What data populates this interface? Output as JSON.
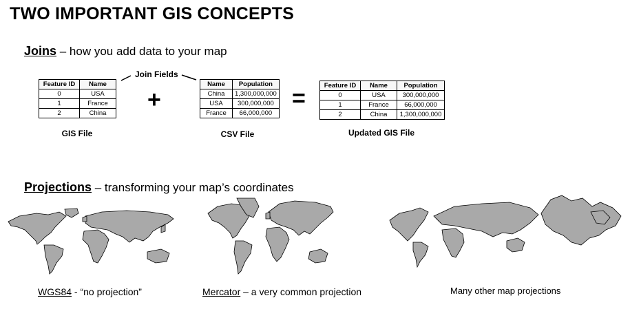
{
  "title": "TWO IMPORTANT GIS CONCEPTS",
  "joins": {
    "heading": "Joins",
    "description": " – how you add data to your map",
    "join_fields_label": "Join Fields",
    "plus": "+",
    "equals": "=",
    "gis_table": {
      "caption": "GIS File",
      "headers": [
        "Feature ID",
        "Name"
      ],
      "rows": [
        [
          "0",
          "USA"
        ],
        [
          "1",
          "France"
        ],
        [
          "2",
          "China"
        ]
      ]
    },
    "csv_table": {
      "caption": "CSV File",
      "headers": [
        "Name",
        "Population"
      ],
      "rows": [
        [
          "China",
          "1,300,000,000"
        ],
        [
          "USA",
          "300,000,000"
        ],
        [
          "France",
          "66,000,000"
        ]
      ]
    },
    "updated_table": {
      "caption": "Updated GIS File",
      "headers": [
        "Feature ID",
        "Name",
        "Population"
      ],
      "rows": [
        [
          "0",
          "USA",
          "300,000,000"
        ],
        [
          "1",
          "France",
          "66,000,000"
        ],
        [
          "2",
          "China",
          "1,300,000,000"
        ]
      ]
    }
  },
  "projections": {
    "heading": "Projections",
    "description": " – transforming your map’s coordinates",
    "maps": [
      {
        "name": "WGS84",
        "rest": " - “no projection”"
      },
      {
        "name": "Mercator",
        "rest": " – a very common projection"
      },
      {
        "name": "",
        "rest": "Many other map projections"
      }
    ]
  }
}
